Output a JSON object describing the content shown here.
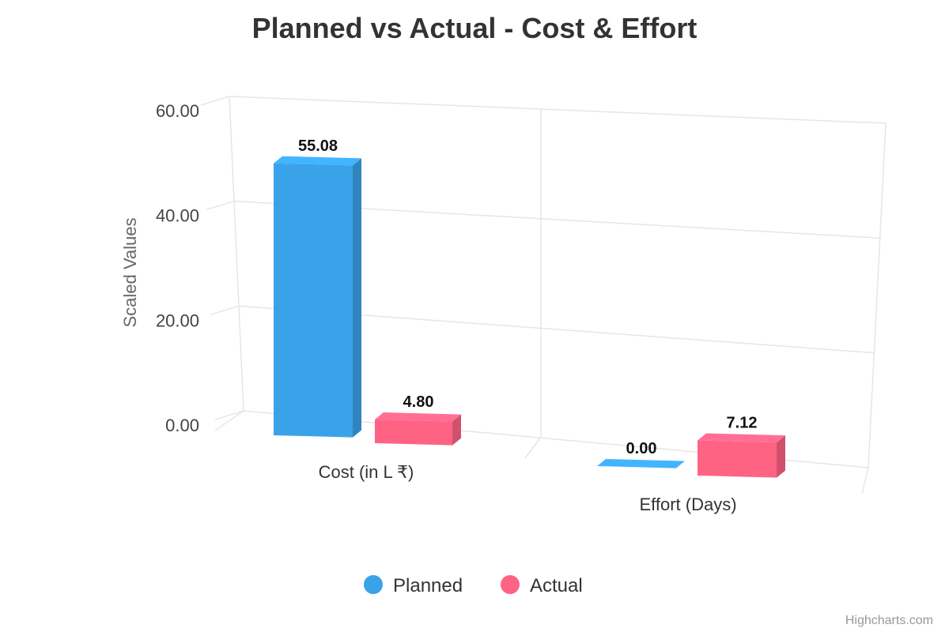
{
  "chart_data": {
    "type": "bar",
    "title": "Planned vs Actual - Cost & Effort",
    "xlabel": "",
    "ylabel": "Scaled Values",
    "categories": [
      "Cost (in L ₹)",
      "Effort (Days)"
    ],
    "series": [
      {
        "name": "Planned",
        "values": [
          55.08,
          0.0
        ],
        "color": "#3aa2e8",
        "labels": [
          "55.08",
          "0.00"
        ]
      },
      {
        "name": "Actual",
        "values": [
          4.8,
          7.12
        ],
        "color": "#ff6384",
        "labels": [
          "4.80",
          "7.12"
        ]
      }
    ],
    "ylim": [
      0,
      60
    ],
    "yticks": [
      "0.00",
      "20.00",
      "40.00",
      "60.00"
    ],
    "grid": true,
    "legend": "bottom-center",
    "credit": "Highcharts.com"
  }
}
